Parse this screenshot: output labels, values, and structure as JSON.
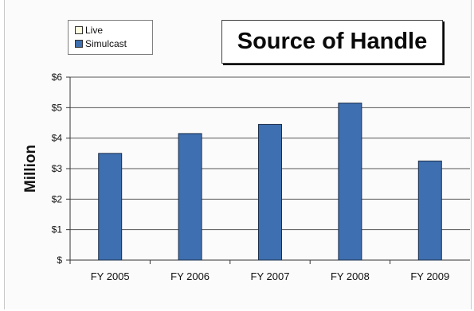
{
  "chart_data": {
    "type": "bar",
    "title": "Source of Handle",
    "xlabel": "",
    "ylabel": "Million",
    "categories": [
      "FY 2005",
      "FY 2006",
      "FY 2007",
      "FY 2008",
      "FY 2009"
    ],
    "series": [
      {
        "name": "Live",
        "values": [
          0,
          0,
          0,
          0,
          0
        ],
        "color": "#fffde0"
      },
      {
        "name": "Simulcast",
        "values": [
          3.5,
          4.15,
          4.45,
          5.15,
          3.25
        ],
        "color": "#3e6fb0"
      }
    ],
    "ylim": [
      0,
      6
    ],
    "yticks": [
      "$",
      "$1",
      "$2",
      "$3",
      "$4",
      "$5",
      "$6"
    ],
    "grid": true,
    "legend_position": "top-left"
  }
}
